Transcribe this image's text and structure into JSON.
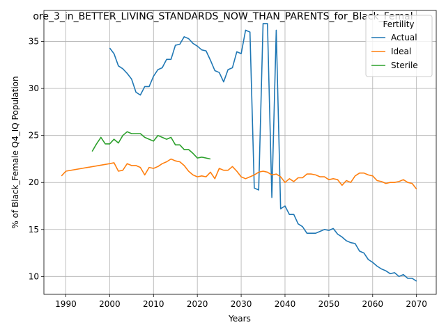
{
  "chart_data": {
    "type": "line",
    "title": "ore_3_in_BETTER_LIVING_STANDARDS_NOW_THAN_PARENTS_for_Black_Femal",
    "xlabel": "Years",
    "ylabel": "% of Black_Female Q4_IQ Population",
    "xlim": [
      1985,
      2074.5
    ],
    "ylim": [
      8.1,
      38.3
    ],
    "xticks": [
      1990,
      2000,
      2010,
      2020,
      2030,
      2040,
      2050,
      2060,
      2070
    ],
    "yticks": [
      10,
      15,
      20,
      25,
      30,
      35
    ],
    "grid": true,
    "legend": {
      "title": "Fertility",
      "placement": "top-right"
    },
    "series": [
      {
        "name": "Actual",
        "color": "#1f77b4",
        "points": [
          [
            2000,
            34.3
          ],
          [
            2001,
            33.7
          ],
          [
            2002,
            32.4
          ],
          [
            2003,
            32.1
          ],
          [
            2004,
            31.6
          ],
          [
            2005,
            31.0
          ],
          [
            2006,
            29.6
          ],
          [
            2007,
            29.3
          ],
          [
            2008,
            30.2
          ],
          [
            2009,
            30.2
          ],
          [
            2010,
            31.3
          ],
          [
            2011,
            32.0
          ],
          [
            2012,
            32.2
          ],
          [
            2013,
            33.1
          ],
          [
            2014,
            33.1
          ],
          [
            2015,
            34.6
          ],
          [
            2016,
            34.7
          ],
          [
            2017,
            35.5
          ],
          [
            2018,
            35.3
          ],
          [
            2019,
            34.8
          ],
          [
            2020,
            34.5
          ],
          [
            2021,
            34.1
          ],
          [
            2022,
            34.0
          ],
          [
            2023,
            33.0
          ],
          [
            2024,
            31.9
          ],
          [
            2025,
            31.7
          ],
          [
            2026,
            30.7
          ],
          [
            2027,
            32.0
          ],
          [
            2028,
            32.2
          ],
          [
            2029,
            33.9
          ],
          [
            2030,
            33.7
          ],
          [
            2031,
            36.2
          ],
          [
            2032,
            36.0
          ],
          [
            2033,
            19.4
          ],
          [
            2034,
            19.2
          ],
          [
            2035,
            36.9
          ],
          [
            2036,
            36.9
          ],
          [
            2037,
            18.4
          ],
          [
            2038,
            36.2
          ],
          [
            2039,
            17.2
          ],
          [
            2040,
            17.5
          ],
          [
            2041,
            16.6
          ],
          [
            2042,
            16.6
          ],
          [
            2043,
            15.6
          ],
          [
            2044,
            15.3
          ],
          [
            2045,
            14.6
          ],
          [
            2046,
            14.6
          ],
          [
            2047,
            14.6
          ],
          [
            2048,
            14.8
          ],
          [
            2049,
            15.0
          ],
          [
            2050,
            14.9
          ],
          [
            2051,
            15.1
          ],
          [
            2052,
            14.5
          ],
          [
            2053,
            14.2
          ],
          [
            2054,
            13.8
          ],
          [
            2055,
            13.6
          ],
          [
            2056,
            13.5
          ],
          [
            2057,
            12.7
          ],
          [
            2058,
            12.5
          ],
          [
            2059,
            11.8
          ],
          [
            2060,
            11.5
          ],
          [
            2061,
            11.1
          ],
          [
            2062,
            10.8
          ],
          [
            2063,
            10.6
          ],
          [
            2064,
            10.3
          ],
          [
            2065,
            10.4
          ],
          [
            2066,
            10.0
          ],
          [
            2067,
            10.2
          ],
          [
            2068,
            9.8
          ],
          [
            2069,
            9.8
          ],
          [
            2070,
            9.5
          ]
        ]
      },
      {
        "name": "Ideal",
        "color": "#ff7f0e",
        "points": [
          [
            1989,
            20.7
          ],
          [
            1990,
            21.2
          ],
          [
            2000,
            22.0
          ],
          [
            2001,
            22.1
          ],
          [
            2002,
            21.2
          ],
          [
            2003,
            21.3
          ],
          [
            2004,
            22.0
          ],
          [
            2005,
            21.8
          ],
          [
            2006,
            21.8
          ],
          [
            2007,
            21.6
          ],
          [
            2008,
            20.8
          ],
          [
            2009,
            21.6
          ],
          [
            2010,
            21.5
          ],
          [
            2011,
            21.7
          ],
          [
            2012,
            22.0
          ],
          [
            2013,
            22.2
          ],
          [
            2014,
            22.5
          ],
          [
            2015,
            22.3
          ],
          [
            2016,
            22.2
          ],
          [
            2017,
            21.8
          ],
          [
            2018,
            21.2
          ],
          [
            2019,
            20.8
          ],
          [
            2020,
            20.6
          ],
          [
            2021,
            20.7
          ],
          [
            2022,
            20.6
          ],
          [
            2023,
            21.1
          ],
          [
            2024,
            20.4
          ],
          [
            2025,
            21.5
          ],
          [
            2026,
            21.3
          ],
          [
            2027,
            21.3
          ],
          [
            2028,
            21.7
          ],
          [
            2029,
            21.2
          ],
          [
            2030,
            20.6
          ],
          [
            2031,
            20.4
          ],
          [
            2032,
            20.6
          ],
          [
            2033,
            20.8
          ],
          [
            2034,
            21.1
          ],
          [
            2035,
            21.2
          ],
          [
            2036,
            21.1
          ],
          [
            2037,
            20.8
          ],
          [
            2038,
            20.9
          ],
          [
            2039,
            20.6
          ],
          [
            2040,
            20.0
          ],
          [
            2041,
            20.4
          ],
          [
            2042,
            20.1
          ],
          [
            2043,
            20.5
          ],
          [
            2044,
            20.5
          ],
          [
            2045,
            20.9
          ],
          [
            2046,
            20.9
          ],
          [
            2047,
            20.8
          ],
          [
            2048,
            20.6
          ],
          [
            2049,
            20.6
          ],
          [
            2050,
            20.3
          ],
          [
            2051,
            20.4
          ],
          [
            2052,
            20.3
          ],
          [
            2053,
            19.7
          ],
          [
            2054,
            20.2
          ],
          [
            2055,
            20.0
          ],
          [
            2056,
            20.7
          ],
          [
            2057,
            21.0
          ],
          [
            2058,
            21.0
          ],
          [
            2059,
            20.8
          ],
          [
            2060,
            20.7
          ],
          [
            2061,
            20.2
          ],
          [
            2062,
            20.1
          ],
          [
            2063,
            19.9
          ],
          [
            2064,
            20.0
          ],
          [
            2065,
            20.0
          ],
          [
            2066,
            20.1
          ],
          [
            2067,
            20.3
          ],
          [
            2068,
            20.0
          ],
          [
            2069,
            19.9
          ],
          [
            2070,
            19.3
          ]
        ]
      },
      {
        "name": "Sterile",
        "color": "#2ca02c",
        "points": [
          [
            1996,
            23.3
          ],
          [
            1997,
            24.1
          ],
          [
            1998,
            24.8
          ],
          [
            1999,
            24.1
          ],
          [
            2000,
            24.1
          ],
          [
            2001,
            24.6
          ],
          [
            2002,
            24.2
          ],
          [
            2003,
            25.0
          ],
          [
            2004,
            25.4
          ],
          [
            2005,
            25.2
          ],
          [
            2006,
            25.2
          ],
          [
            2007,
            25.2
          ],
          [
            2008,
            24.8
          ],
          [
            2009,
            24.6
          ],
          [
            2010,
            24.4
          ],
          [
            2011,
            25.0
          ],
          [
            2012,
            24.8
          ],
          [
            2013,
            24.6
          ],
          [
            2014,
            24.8
          ],
          [
            2015,
            24.0
          ],
          [
            2016,
            24.0
          ],
          [
            2017,
            23.5
          ],
          [
            2018,
            23.5
          ],
          [
            2019,
            23.1
          ],
          [
            2020,
            22.6
          ],
          [
            2021,
            22.7
          ],
          [
            2022,
            22.6
          ],
          [
            2023,
            22.5
          ]
        ]
      }
    ]
  }
}
